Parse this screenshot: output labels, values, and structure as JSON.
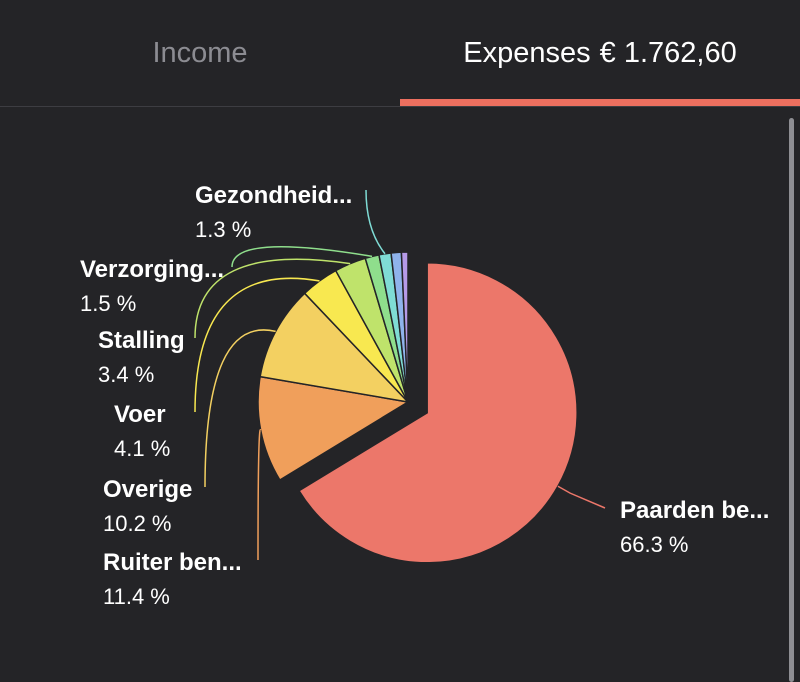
{
  "tabs": {
    "income_label": "Income",
    "expenses_label": "Expenses",
    "expenses_total": "€ 1.762,60"
  },
  "colors": {
    "background": "#242427",
    "accent": "#ec6f5f"
  },
  "chart_data": {
    "type": "pie",
    "title": "Expenses",
    "total": "€ 1.762,60",
    "slices": [
      {
        "label": "Paarden be...",
        "percent": 66.3,
        "percent_label": "66.3 %",
        "color": "#ec776a",
        "exploded": true
      },
      {
        "label": "Ruiter ben...",
        "percent": 11.4,
        "percent_label": "11.4 %",
        "color": "#f09f5b"
      },
      {
        "label": "Overige",
        "percent": 10.2,
        "percent_label": "10.2 %",
        "color": "#f3d061"
      },
      {
        "label": "Voer",
        "percent": 4.1,
        "percent_label": "4.1 %",
        "color": "#f8e850"
      },
      {
        "label": "Stalling",
        "percent": 3.4,
        "percent_label": "3.4 %",
        "color": "#bfe36b"
      },
      {
        "label": "Verzorging...",
        "percent": 1.5,
        "percent_label": "1.5 %",
        "color": "#8fde8c"
      },
      {
        "label": "Gezondheid...",
        "percent": 1.3,
        "percent_label": "1.3 %",
        "color": "#7fdcd5"
      },
      {
        "label": "",
        "percent": 1.1,
        "percent_label": "",
        "color": "#8fb3ec"
      },
      {
        "label": "",
        "percent": 0.7,
        "percent_label": "",
        "color": "#b69ae8"
      }
    ]
  }
}
